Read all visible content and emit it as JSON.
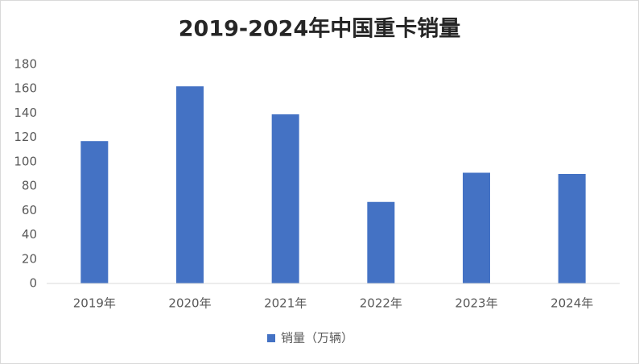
{
  "chart_data": {
    "type": "bar",
    "title": "2019-2024年中国重卡销量",
    "categories": [
      "2019年",
      "2020年",
      "2021年",
      "2022年",
      "2023年",
      "2024年"
    ],
    "series": [
      {
        "name": "销量（万辆）",
        "color": "#4472c4",
        "values": [
          117,
          162,
          139,
          67,
          91,
          90
        ]
      }
    ],
    "ylim": [
      0,
      180
    ],
    "yticks": [
      0,
      20,
      40,
      60,
      80,
      100,
      120,
      140,
      160,
      180
    ],
    "grid": false,
    "legend": "bottom"
  }
}
